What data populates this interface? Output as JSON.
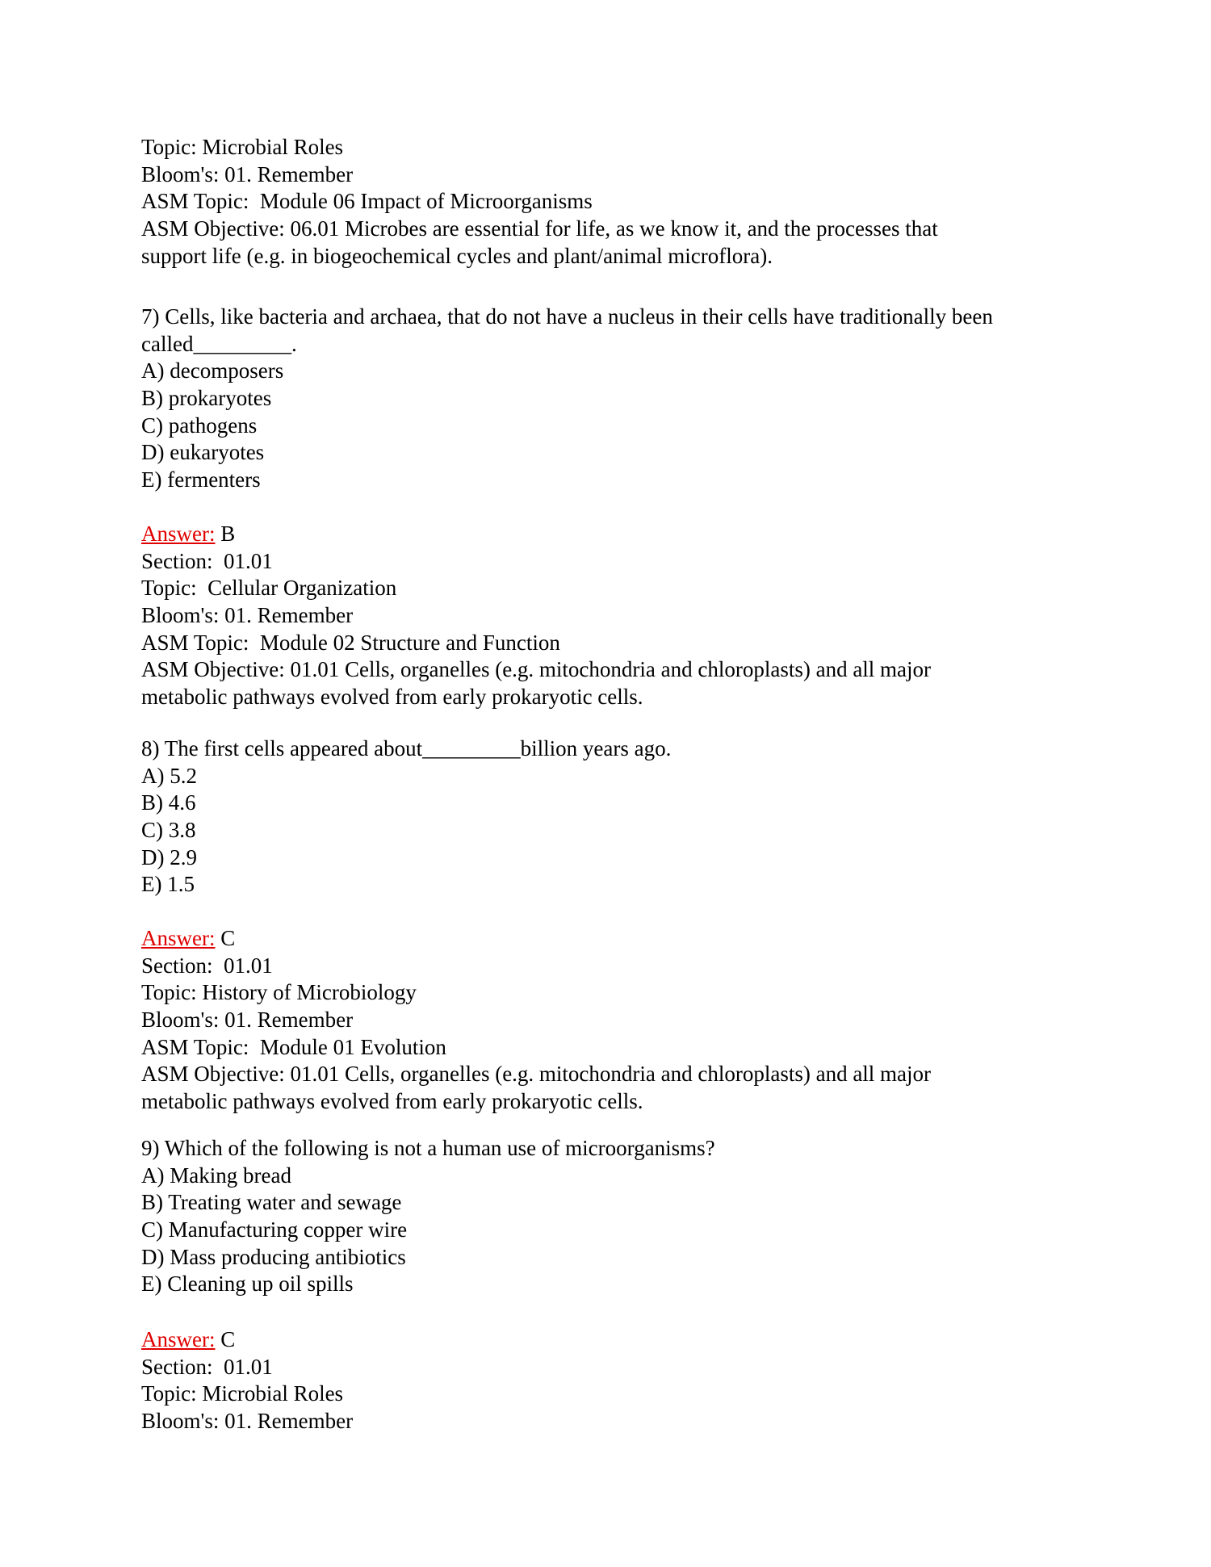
{
  "colors": {
    "answer_label": "#e00000"
  },
  "blocks": [
    {
      "lines": [
        "Topic: Microbial Roles",
        "Bloom's: 01. Remember",
        "ASM Topic:  Module 06 Impact of Microorganisms",
        "ASM Objective: 06.01 Microbes are essential for life, as we know it, and the processes that",
        "support life (e.g. in biogeochemical cycles and plant/animal microflora)."
      ]
    },
    {
      "lines": [
        "7) Cells, like bacteria and archaea, that do not have a nucleus in their cells have traditionally been",
        "called_________.",
        "A) decomposers",
        "B) prokaryotes",
        "C) pathogens",
        "D) eukaryotes",
        "E) fermenters"
      ]
    },
    {
      "answer_label": "Answer:",
      "answer": " B",
      "lines": [
        "Section:  01.01",
        "Topic:  Cellular Organization",
        "Bloom's: 01. Remember",
        "ASM Topic:  Module 02 Structure and Function",
        "ASM Objective: 01.01 Cells, organelles (e.g. mitochondria and chloroplasts) and all major",
        "metabolic pathways evolved from early prokaryotic cells."
      ]
    },
    {
      "lines": [
        "8) The first cells appeared about_________billion years ago.",
        "A) 5.2",
        "B) 4.6",
        "C) 3.8",
        "D) 2.9",
        "E) 1.5"
      ]
    },
    {
      "answer_label": "Answer:",
      "answer": " C",
      "lines": [
        "Section:  01.01",
        "Topic: History of Microbiology",
        "Bloom's: 01. Remember",
        "ASM Topic:  Module 01 Evolution",
        "ASM Objective: 01.01 Cells, organelles (e.g. mitochondria and chloroplasts) and all major",
        "metabolic pathways evolved from early prokaryotic cells."
      ]
    },
    {
      "lines": [
        "9) Which of the following is not a human use of microorganisms?",
        "A) Making bread",
        "B) Treating water and sewage",
        "C) Manufacturing copper wire",
        "D) Mass producing antibiotics",
        "E) Cleaning up oil spills"
      ]
    },
    {
      "answer_label": "Answer:",
      "answer": " C",
      "lines": [
        "Section:  01.01",
        "Topic: Microbial Roles",
        "Bloom's: 01. Remember"
      ]
    }
  ]
}
